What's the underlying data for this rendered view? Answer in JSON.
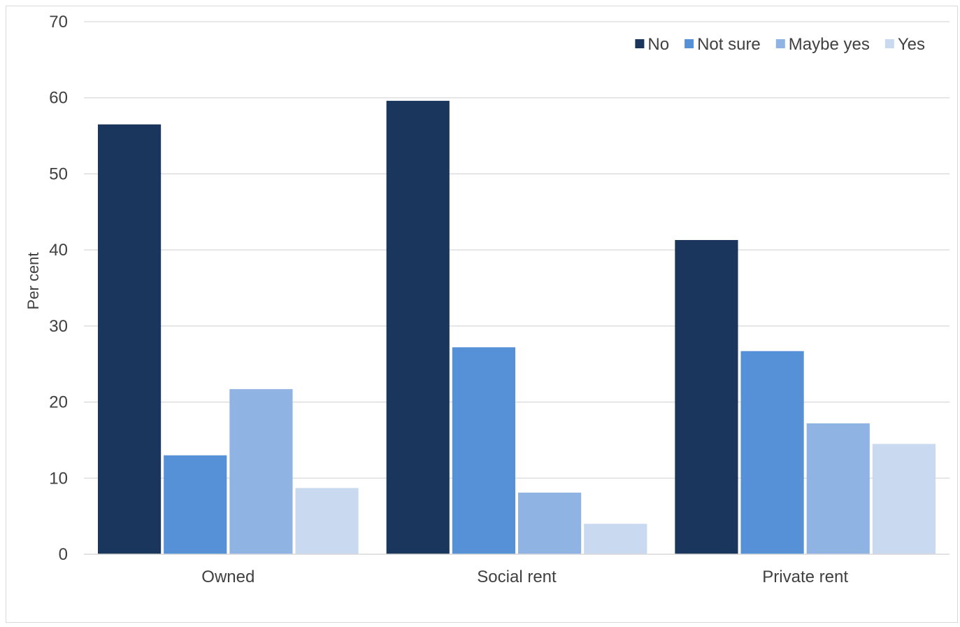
{
  "chart_data": {
    "type": "bar",
    "title": "",
    "xlabel": "",
    "ylabel": "Per cent",
    "ylim": [
      0,
      70
    ],
    "yticks": [
      0,
      10,
      20,
      30,
      40,
      50,
      60,
      70
    ],
    "grid": true,
    "legend_position": "top-right",
    "categories": [
      "Owned",
      "Social rent",
      "Private rent"
    ],
    "series": [
      {
        "name": "No",
        "color": "#1a365d",
        "values": [
          56.5,
          59.6,
          41.3
        ]
      },
      {
        "name": "Not sure",
        "color": "#5690d6",
        "values": [
          13.0,
          27.2,
          26.7
        ]
      },
      {
        "name": "Maybe yes",
        "color": "#8fb3e2",
        "values": [
          21.7,
          8.1,
          17.2
        ]
      },
      {
        "name": "Yes",
        "color": "#c8d9f0",
        "values": [
          8.7,
          4.0,
          14.5
        ]
      }
    ]
  }
}
